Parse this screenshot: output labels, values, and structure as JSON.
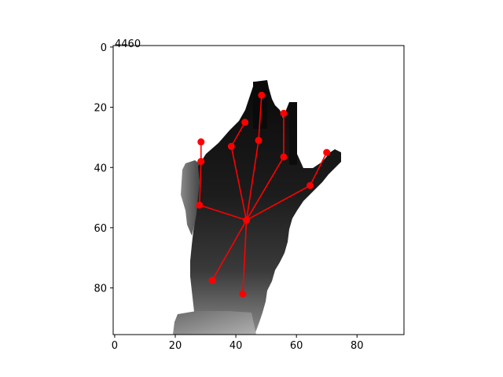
{
  "figure": {
    "title_text": "4460",
    "x_ticks": [
      "0",
      "20",
      "40",
      "60",
      "80"
    ],
    "y_ticks": [
      "0",
      "20",
      "40",
      "60",
      "80"
    ],
    "x_range": [
      -0.5,
      95.5
    ],
    "y_range": [
      -0.5,
      95.5
    ],
    "skeleton_color": "#ff0000",
    "joint_color": "#ff0000",
    "background": "#ffffff"
  },
  "keypoints": [
    {
      "name": "wrist",
      "x": 43.5,
      "y": 57.5
    },
    {
      "name": "palm-base-left",
      "x": 32.2,
      "y": 77.5
    },
    {
      "name": "palm-base-right",
      "x": 42.3,
      "y": 82.0
    },
    {
      "name": "thumb-mcp",
      "x": 28.0,
      "y": 52.5
    },
    {
      "name": "thumb-pip",
      "x": 28.5,
      "y": 38.0
    },
    {
      "name": "thumb-tip",
      "x": 28.5,
      "y": 31.5
    },
    {
      "name": "index-pip",
      "x": 38.5,
      "y": 33.0
    },
    {
      "name": "index-tip",
      "x": 43.0,
      "y": 25.0
    },
    {
      "name": "middle-pip",
      "x": 47.5,
      "y": 31.0
    },
    {
      "name": "middle-tip",
      "x": 48.5,
      "y": 16.0
    },
    {
      "name": "ring-pip",
      "x": 55.8,
      "y": 36.5
    },
    {
      "name": "ring-tip",
      "x": 55.8,
      "y": 22.0
    },
    {
      "name": "little-pip",
      "x": 64.5,
      "y": 46.0
    },
    {
      "name": "little-tip",
      "x": 70.0,
      "y": 35.0
    }
  ],
  "bones": [
    [
      "wrist",
      "palm-base-left"
    ],
    [
      "wrist",
      "palm-base-right"
    ],
    [
      "wrist",
      "thumb-mcp"
    ],
    [
      "thumb-mcp",
      "thumb-pip"
    ],
    [
      "thumb-pip",
      "thumb-tip"
    ],
    [
      "wrist",
      "index-pip"
    ],
    [
      "index-pip",
      "index-tip"
    ],
    [
      "wrist",
      "middle-pip"
    ],
    [
      "middle-pip",
      "middle-tip"
    ],
    [
      "wrist",
      "ring-pip"
    ],
    [
      "ring-pip",
      "ring-tip"
    ],
    [
      "wrist",
      "little-pip"
    ],
    [
      "little-pip",
      "little-tip"
    ]
  ]
}
